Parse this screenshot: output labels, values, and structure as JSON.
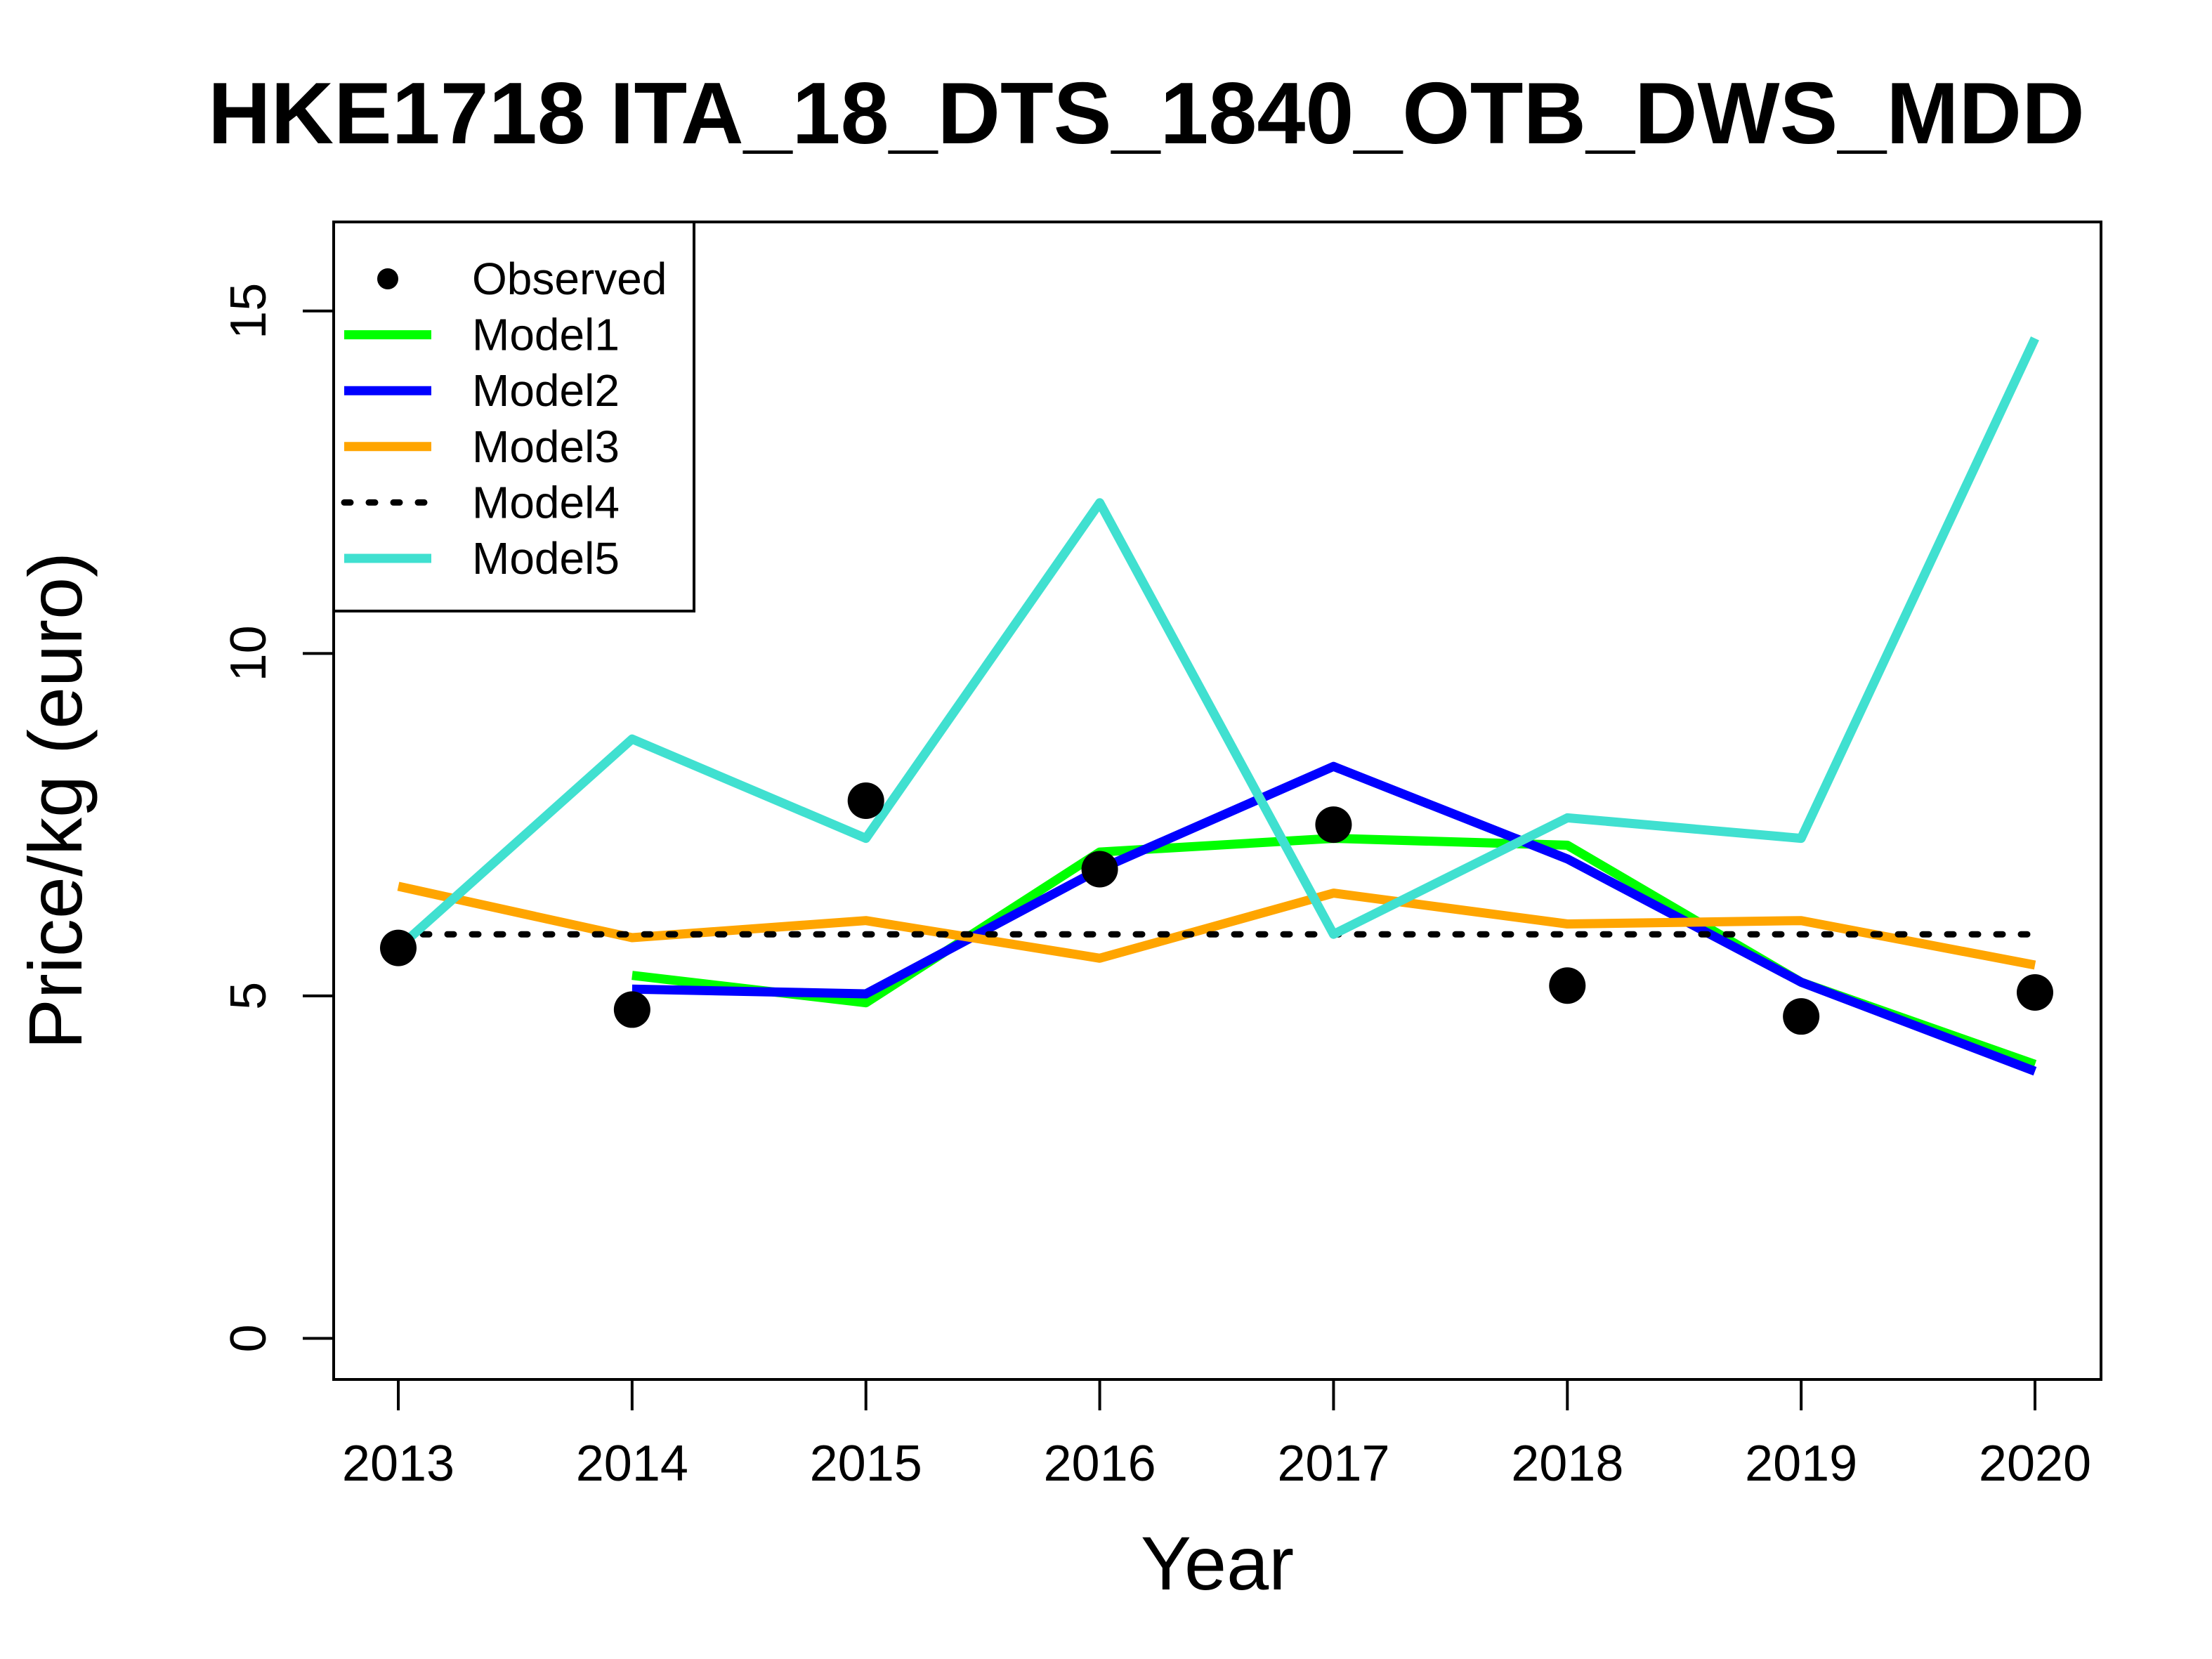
{
  "chart_data": {
    "type": "line",
    "title": "HKE1718 ITA_18_DTS_1840_OTB_DWS_MDD",
    "xlabel": "Year",
    "ylabel": "Price/kg (euro)",
    "x": [
      "2013",
      "2014",
      "2015",
      "2016",
      "2017",
      "2018",
      "2019",
      "2020"
    ],
    "x_ticks": [
      "2013",
      "2014",
      "2015",
      "2016",
      "2017",
      "2018",
      "2019",
      "2020"
    ],
    "y_ticks": [
      "0",
      "5",
      "10",
      "15"
    ],
    "ylim": [
      -0.6,
      16.3
    ],
    "grid": false,
    "legend_position": "top-left",
    "observed": {
      "name": "Observed",
      "color": "#000000",
      "values": [
        5.7,
        4.8,
        7.85,
        6.85,
        7.5,
        5.15,
        4.7,
        5.05
      ]
    },
    "series": [
      {
        "name": "Model1",
        "color": "#00ff00",
        "style": "solid",
        "values": [
          null,
          5.3,
          4.9,
          7.1,
          7.3,
          7.2,
          5.2,
          4.0
        ]
      },
      {
        "name": "Model2",
        "color": "#0000ff",
        "style": "solid",
        "values": [
          null,
          5.1,
          5.03,
          6.85,
          8.35,
          7.0,
          5.2,
          3.9
        ]
      },
      {
        "name": "Model3",
        "color": "#ffa500",
        "style": "solid",
        "values": [
          6.6,
          5.85,
          6.1,
          5.55,
          6.5,
          6.05,
          6.1,
          5.45
        ]
      },
      {
        "name": "Model4",
        "color": "#000000",
        "style": "dotted",
        "values": [
          5.9,
          5.9,
          5.9,
          5.9,
          5.9,
          5.9,
          5.9,
          5.9
        ]
      },
      {
        "name": "Model5",
        "color": "#40e0d0",
        "style": "solid",
        "values": [
          5.7,
          8.75,
          7.3,
          12.2,
          5.9,
          7.6,
          7.3,
          14.6
        ]
      }
    ]
  }
}
